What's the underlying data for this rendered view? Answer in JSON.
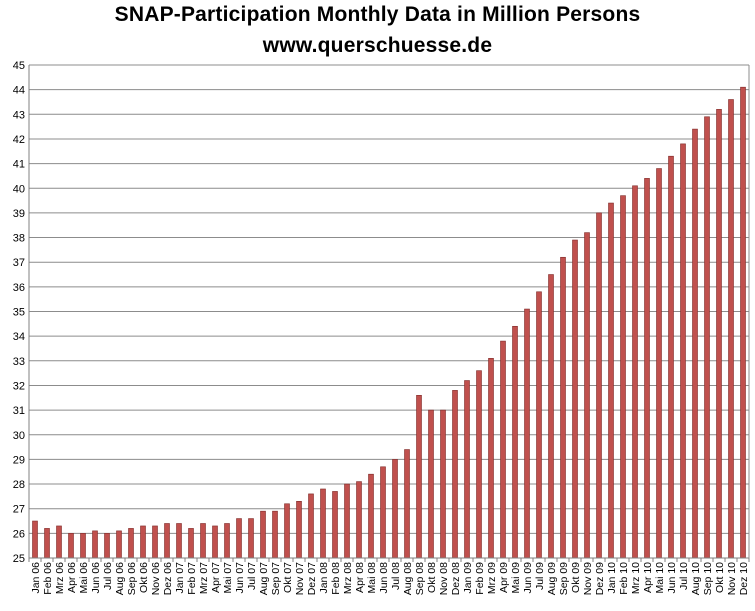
{
  "chart_data": {
    "type": "bar",
    "title": "SNAP-Participation Monthly Data in Million Persons",
    "subtitle": "www.querschuesse.de",
    "xlabel": "",
    "ylabel": "",
    "ylim": [
      25,
      45
    ],
    "yticks": [
      25,
      26,
      27,
      28,
      29,
      30,
      31,
      32,
      33,
      34,
      35,
      36,
      37,
      38,
      39,
      40,
      41,
      42,
      43,
      44,
      45
    ],
    "grid": true,
    "bar_color": "#c0504d",
    "bar_edge_color": "#7f2a28",
    "categories": [
      "Jan 06",
      "Feb 06",
      "Mrz 06",
      "Apr 06",
      "Mai 06",
      "Jun 06",
      "Jul 06",
      "Aug 06",
      "Sep 06",
      "Okt 06",
      "Nov 06",
      "Dez 06",
      "Jan 07",
      "Feb 07",
      "Mrz 07",
      "Apr 07",
      "Mai 07",
      "Jun 07",
      "Jul 07",
      "Aug 07",
      "Sep 07",
      "Okt 07",
      "Nov 07",
      "Dez 07",
      "Jan 08",
      "Feb 08",
      "Mrz 08",
      "Apr 08",
      "Mai 08",
      "Jun 08",
      "Jul 08",
      "Aug 08",
      "Sep 08",
      "Okt 08",
      "Nov 08",
      "Dez 08",
      "Jan 09",
      "Feb 09",
      "Mrz 09",
      "Apr 09",
      "Mai 09",
      "Jun 09",
      "Jul 09",
      "Aug 09",
      "Sep 09",
      "Okt 09",
      "Nov 09",
      "Dez 09",
      "Jan 10",
      "Feb 10",
      "Mrz 10",
      "Apr 10",
      "Mai 10",
      "Jun 10",
      "Jul 10",
      "Aug 10",
      "Sep 10",
      "Okt 10",
      "Nov 10",
      "Dez 10"
    ],
    "values": [
      26.5,
      26.2,
      26.3,
      26.0,
      26.0,
      26.1,
      26.0,
      26.1,
      26.2,
      26.3,
      26.3,
      26.4,
      26.4,
      26.2,
      26.4,
      26.3,
      26.4,
      26.6,
      26.6,
      26.9,
      26.9,
      27.2,
      27.3,
      27.6,
      27.8,
      27.7,
      28.0,
      28.1,
      28.4,
      28.7,
      29.0,
      29.4,
      31.6,
      31.0,
      31.0,
      31.8,
      32.2,
      32.6,
      33.1,
      33.8,
      34.4,
      35.1,
      35.8,
      36.5,
      37.2,
      37.9,
      38.2,
      39.0,
      39.4,
      39.7,
      40.1,
      40.4,
      40.8,
      41.3,
      41.8,
      42.4,
      42.9,
      43.2,
      43.6,
      44.1
    ]
  }
}
